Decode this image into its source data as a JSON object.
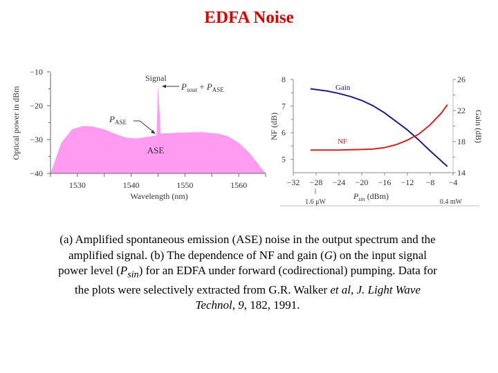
{
  "slide": {
    "title": "EDFA Noise",
    "caption": {
      "part1": "(a) Amplified spontaneous emission (ASE) noise in the output spectrum and the amplified signal. (b) The dependence of NF and gain (",
      "G": "G",
      "part2": ") on the input signal power level (",
      "P": "P",
      "sin": "sin",
      "part3": ") for an EDFA under forward (codirectional) pumping. Data for the plots were selectively extracted from G.R. Walker ",
      "etal": "et al",
      "comma1": ", ",
      "journal": "J. Light Wave Technol",
      "comma2": ", ",
      "vol": "9",
      "rest": ", 182, 1991."
    }
  },
  "chart_data": [
    {
      "type": "area",
      "panel": "a",
      "title": "",
      "xlabel": "Wavelength (nm)",
      "ylabel": "Optical power in dBm",
      "xlim": [
        1525,
        1565
      ],
      "ylim": [
        -40,
        -10
      ],
      "xticks": [
        "1530",
        "1540",
        "1550",
        "1560"
      ],
      "yticks": [
        "-10",
        "-20",
        "-30",
        "-40"
      ],
      "fill_color": "#ff9cf2",
      "x": [
        1525,
        1527,
        1529,
        1531,
        1533,
        1535,
        1537,
        1539,
        1541,
        1543,
        1544.7,
        1545,
        1545.5,
        1547,
        1550,
        1553,
        1556,
        1558,
        1560,
        1562,
        1564,
        1565
      ],
      "values": [
        -40,
        -31,
        -27,
        -26,
        -26.2,
        -27,
        -28.3,
        -29.4,
        -29.7,
        -29.2,
        -28.8,
        -14,
        -28.2,
        -28.1,
        -27.9,
        -27.8,
        -28.2,
        -29,
        -31,
        -34,
        -38,
        -40
      ],
      "annotations": {
        "signal": "Signal",
        "psout_pase_P1": "P",
        "psout_pase_sub1": "sout",
        "psout_pase_plus": " + ",
        "psout_pase_P2": "P",
        "psout_pase_sub2": "ASE",
        "pase_P": "P",
        "pase_sub": "ASE",
        "ase": "ASE"
      }
    },
    {
      "type": "line",
      "panel": "b",
      "xlabel_P": "P",
      "xlabel_sub": "sin",
      "xlabel_unit": " (dBm)",
      "ylabel_left": "NF (dB)",
      "ylabel_right": "Gain (dB)",
      "xlim": [
        -32,
        -4
      ],
      "ylim_left": [
        4.5,
        8
      ],
      "ylim_right": [
        14,
        26
      ],
      "xticks": [
        "-32",
        "-28",
        "-24",
        "-20",
        "-16",
        "-12",
        "-8",
        "-4"
      ],
      "yticks_left": [
        "8",
        "7",
        "6",
        "5"
      ],
      "yticks_right": [
        "26",
        "22",
        "18",
        "14"
      ],
      "x_annotations": {
        "left": "1.6 μW",
        "right": "0.4 mW"
      },
      "series": [
        {
          "name": "Gain",
          "axis": "right",
          "color": "#1a1a8c",
          "x": [
            -29,
            -26,
            -24,
            -22,
            -20,
            -18,
            -16,
            -14,
            -12,
            -10,
            -8,
            -5
          ],
          "values": [
            24.8,
            24.5,
            24.2,
            23.8,
            23.3,
            22.6,
            21.7,
            20.6,
            19.5,
            18.2,
            16.8,
            14.8
          ]
        },
        {
          "name": "NF",
          "axis": "left",
          "color": "#d42020",
          "x": [
            -29,
            -26,
            -24,
            -22,
            -20,
            -18,
            -16,
            -14,
            -12,
            -10,
            -8,
            -6,
            -5
          ],
          "values": [
            5.35,
            5.35,
            5.35,
            5.36,
            5.37,
            5.39,
            5.44,
            5.55,
            5.72,
            5.95,
            6.3,
            6.75,
            7.05
          ]
        }
      ]
    }
  ]
}
